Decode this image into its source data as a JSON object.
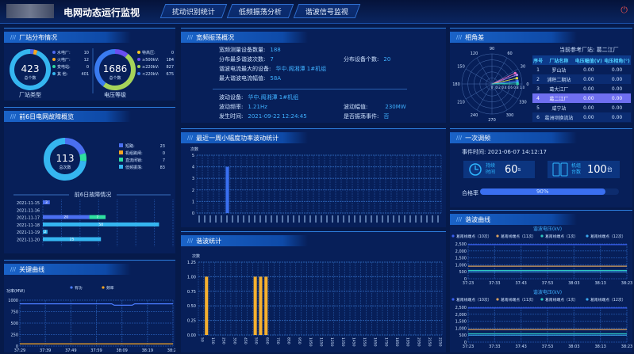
{
  "header": {
    "title": "电网动态运行监视",
    "tabs": [
      "扰动识别统计",
      "低频振荡分析",
      "谐波信号监视"
    ],
    "power_icon": "power-icon"
  },
  "station": {
    "title": "厂站分布情况",
    "type_total": "423",
    "type_total_label": "总个数",
    "type_caption": "厂站类型",
    "types": [
      {
        "name": "水电厂:",
        "value": 10,
        "color": "#4f6bef"
      },
      {
        "name": "火电厂:",
        "value": 12,
        "color": "#f5a623"
      },
      {
        "name": "变电站:",
        "value": 0,
        "color": "#2ed6a0"
      },
      {
        "name": "其  他:",
        "value": 401,
        "color": "#35b6f0"
      }
    ],
    "volt_total": "1686",
    "volt_total_label": "总个数",
    "volt_caption": "电压等级",
    "volts": [
      {
        "name": "特高压:",
        "value": 0,
        "color": "#f5c623"
      },
      {
        "name": "≥500kV:",
        "value": 184,
        "color": "#6a4ff0"
      },
      {
        "name": "≥220kV:",
        "value": 827,
        "color": "#a6d35a"
      },
      {
        "name": "<220kV:",
        "value": 675,
        "color": "#3a7bf0"
      }
    ]
  },
  "fault": {
    "title": "前6日电网故障概览",
    "total": "113",
    "total_label": "总次数",
    "bar_title": "前6日故障情况",
    "types": [
      {
        "name": "短路:",
        "value": 23,
        "color": "#4a6ff0"
      },
      {
        "name": "机组跳闸:",
        "value": 0,
        "color": "#f5a623"
      },
      {
        "name": "直流闭锁:",
        "value": 7,
        "color": "#2ee0a0"
      },
      {
        "name": "低频振荡:",
        "value": 83,
        "color": "#35b6f0"
      }
    ],
    "dates": [
      "2021-11-15",
      "2021-11-16",
      "2021-11-17",
      "2021-11-18",
      "2021-11-19",
      "2021-11-20"
    ],
    "stack": [
      [
        3,
        0,
        0,
        0
      ],
      [
        0,
        0,
        0,
        0
      ],
      [
        20,
        0,
        7,
        0
      ],
      [
        0,
        0,
        0,
        50
      ],
      [
        0,
        0,
        0,
        2
      ],
      [
        0,
        0,
        0,
        25
      ]
    ]
  },
  "key_curve": {
    "title": "关键曲线",
    "legend": [
      "有功",
      "频率"
    ],
    "ylabel": "功率(MW)",
    "yticks": [
      "0",
      "250",
      "500",
      "750",
      "1000"
    ],
    "xticks": [
      "37:29",
      "37:39",
      "37:49",
      "37:59",
      "38:09",
      "38:19",
      "38:29"
    ],
    "colors": [
      "#4a7cff",
      "#f5a623"
    ]
  },
  "broadband": {
    "title": "宽频振荡概况",
    "items": [
      {
        "label": "宽频测量设备数量:",
        "value": "188"
      },
      {
        "label": "分布最多谐波次数:",
        "value": "7"
      },
      {
        "label": "谐波电流最大的设备:",
        "value": "华中.阁湘潭 1#机组"
      },
      {
        "label": "最大谐波电流幅值:",
        "value": "58A"
      }
    ],
    "right_item": {
      "label": "分布设备个数:",
      "value": "20"
    },
    "event": [
      {
        "label": "波动设备:",
        "value": "华中.阁湘潭 1#机组"
      },
      {
        "label": "波动频率:",
        "value": "1.21Hz"
      },
      {
        "label": "发生时间:",
        "value": "2021-09-22 12:24:45"
      }
    ],
    "event_right": [
      {
        "label": "波动幅值:",
        "value": "230MW"
      },
      {
        "label": "是否振荡事件:",
        "value": "否"
      }
    ]
  },
  "chart_data": [
    {
      "type": "bar",
      "title": "最近一周小幅度功率波动统计",
      "ylabel": "次数",
      "ylim": [
        0,
        5
      ],
      "yticks": [
        0,
        1,
        2,
        3,
        4,
        5
      ],
      "bar_count": 44,
      "values_nonzero": [
        {
          "index": 5,
          "value": 4
        }
      ],
      "color": "#3a6ff0",
      "grid": true
    },
    {
      "type": "bar",
      "title": "谐波统计",
      "ylabel": "次数",
      "ylim": [
        0,
        1.25
      ],
      "yticks": [
        "0.00",
        "0.25",
        "0.50",
        "0.75",
        "1.00",
        "1.25"
      ],
      "categories": [
        50,
        100,
        150,
        200,
        250,
        300,
        350,
        400,
        450,
        500,
        550,
        600,
        650,
        700,
        750,
        800,
        850,
        900,
        950,
        1000,
        1050,
        1100,
        1150,
        1200,
        1250,
        1300,
        1350,
        1400,
        1450,
        1500,
        1550,
        1600,
        1650,
        1700,
        1750,
        1800,
        1850,
        1900,
        1950,
        2000,
        2050,
        2100,
        2150,
        2200,
        2250
      ],
      "values": {
        "100": 1,
        "550": 1,
        "600": 1,
        "650": 1
      },
      "color": "#f5b030",
      "grid": true
    },
    {
      "type": "line",
      "title": "关键曲线",
      "ylim": [
        0,
        1000
      ],
      "series": [
        {
          "name": "有功",
          "level": 920,
          "dip": [
            0.6,
            0.75,
            890
          ]
        },
        {
          "name": "频率",
          "level": 50
        }
      ]
    },
    {
      "type": "line",
      "title": "谐波电压(kV)",
      "ylim": [
        0,
        2500
      ],
      "yticks": [
        "0",
        "500",
        "1,000",
        "1,500",
        "2,000",
        "2,500"
      ],
      "xticks": [
        "37:23",
        "37:33",
        "37:43",
        "37:53",
        "38:03",
        "38:13",
        "38:23"
      ],
      "series": [
        {
          "name": "葛南线端点（10次）",
          "level": 2450,
          "color": "#3a5ff0"
        },
        {
          "name": "葛南线端点（11次）",
          "level": 900,
          "color": "#d8a060"
        },
        {
          "name": "葛南线端点（1次）",
          "level": 600,
          "color": "#2ec8c0"
        },
        {
          "name": "葛南线端点（12次）",
          "level": 500,
          "color": "#3aa8f0"
        }
      ]
    },
    {
      "type": "line",
      "title": "谐波电压(kV)",
      "ylim": [
        0,
        2500
      ],
      "yticks": [
        "0",
        "500",
        "1,000",
        "1,500",
        "2,000",
        "2,500"
      ],
      "xticks": [
        "37:23",
        "37:33",
        "37:43",
        "37:53",
        "38:03",
        "38:13",
        "38:23"
      ],
      "series": [
        {
          "name": "葛南线端点（10次）",
          "level": 2450,
          "color": "#3a5ff0"
        },
        {
          "name": "葛南线端点（11次）",
          "level": 900,
          "color": "#d8a060"
        },
        {
          "name": "葛南线端点（1次）",
          "level": 600,
          "color": "#2ec8c0"
        },
        {
          "name": "葛南线端点（12次）",
          "level": 500,
          "color": "#3aa8f0"
        }
      ]
    },
    {
      "type": "scatter",
      "title": "相角差",
      "polar": true,
      "angle_ticks": [
        "0",
        "30",
        "60",
        "90",
        "120",
        "150",
        "180",
        "210",
        "240",
        "270",
        "300",
        "330"
      ],
      "radial_ticks": [
        "0",
        "0.2",
        "0.4",
        "0.6",
        "0.8",
        "1.0"
      ],
      "points": [
        {
          "angle": 25,
          "r": 0.85,
          "color": "#f070c0"
        },
        {
          "angle": 20,
          "r": 0.88,
          "color": "#b080f0"
        },
        {
          "angle": 13,
          "r": 0.85,
          "color": "#e0e040"
        },
        {
          "angle": 7,
          "r": 0.85,
          "color": "#4a7cff"
        },
        {
          "angle": 3,
          "r": 0.85,
          "color": "#30c0e0"
        },
        {
          "angle": 0,
          "r": 0.85,
          "color": "#30d0a0"
        }
      ]
    }
  ],
  "phase": {
    "title": "相角差",
    "ref_label": "当前参考厂站:",
    "ref_value": "葛二江厂",
    "headers": [
      "序号",
      "厂站名称",
      "电压幅值(V)",
      "电压相角(°)"
    ],
    "rows": [
      [
        "1",
        "罗山站",
        "0.00",
        "0.00"
      ],
      [
        "2",
        "浦积二期站",
        "0.00",
        "0.00"
      ],
      [
        "3",
        "葛大江厂",
        "0.00",
        "0.00"
      ],
      [
        "4",
        "葛二江厂",
        "0.00",
        "0.00"
      ],
      [
        "5",
        "咸宁站",
        "0.00",
        "0.00"
      ],
      [
        "6",
        "葛洲坝换流站",
        "0.00",
        "0.00"
      ]
    ],
    "selected": 3
  },
  "regulate": {
    "title": "一次调频",
    "event_time_label": "事件时间:",
    "event_time": "2021-06-07  14:12:17",
    "dur_label1": "持续",
    "dur_label2": "时间",
    "dur_value": "60",
    "dur_unit": "s",
    "unit_label1": "机组",
    "unit_label2": "台数",
    "unit_value": "100",
    "unit_unit": "台",
    "pass_label": "合格率",
    "pass_rate": 90,
    "pass_text": "90%"
  },
  "harmonic": {
    "title": "谐波曲线"
  },
  "power_chart": {
    "title": "最近一周小幅度功率波动统计"
  },
  "harm_stat": {
    "title": "谐波统计"
  }
}
